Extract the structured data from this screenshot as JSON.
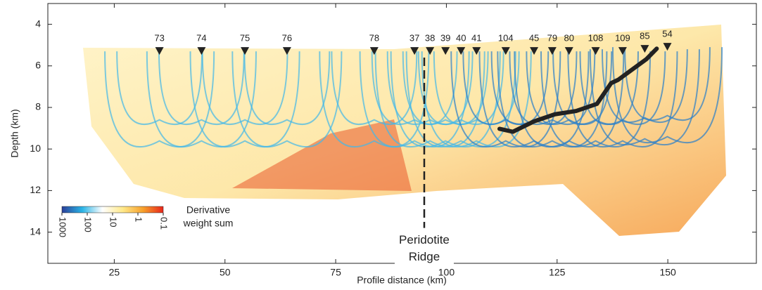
{
  "chart_data": {
    "type": "ray-coverage",
    "x_label": "Profile distance (km)",
    "y_label": "Depth (km)",
    "xlim": [
      10,
      170
    ],
    "ylim": [
      3,
      15.5
    ],
    "y_inverted": true,
    "xticks": [
      25,
      50,
      75,
      100,
      125,
      150
    ],
    "yticks": [
      4,
      6,
      8,
      10,
      12,
      14
    ],
    "stations": {
      "labels": [
        "73",
        "74",
        "75",
        "76",
        "78",
        "37",
        "38",
        "39",
        "40",
        "41",
        "104",
        "45",
        "79",
        "80",
        "108",
        "109",
        "85",
        "54"
      ],
      "x": [
        35.2,
        44.7,
        54.5,
        64,
        83.7,
        92.8,
        96.3,
        99.8,
        103.3,
        106.8,
        113.4,
        119.8,
        123.9,
        127.7,
        133.7,
        139.8,
        144.8,
        149.9
      ],
      "depth": [
        5.3,
        5.3,
        5.3,
        5.3,
        5.3,
        5.3,
        5.3,
        5.3,
        5.3,
        5.3,
        5.3,
        5.3,
        5.3,
        5.3,
        5.3,
        5.3,
        5.2,
        5.1
      ],
      "color": "#222222"
    },
    "trend_line": {
      "color": "#222222",
      "x": [
        112.0,
        115.0,
        119.8,
        124.5,
        129.3,
        134.0,
        137.2,
        138.8,
        142.0,
        145.2,
        147.5
      ],
      "y": [
        9.03,
        9.17,
        8.67,
        8.33,
        8.17,
        7.83,
        6.83,
        6.67,
        6.17,
        5.67,
        5.17
      ]
    },
    "annotation": {
      "lines": [
        "Peridotite",
        "Ridge"
      ],
      "x": 95,
      "y_top": 5.6,
      "y_bottom": 13.8
    },
    "colorbar": {
      "title": [
        "Derivative",
        "weight sum"
      ],
      "colors": [
        "#2b3f99",
        "#2ab4e6",
        "#ffffff",
        "#ffe98a",
        "#f7a12c",
        "#e8261b"
      ],
      "log_range": [
        1000,
        0.1
      ],
      "ticks": [
        1000,
        100,
        10,
        1,
        0.1
      ]
    }
  }
}
